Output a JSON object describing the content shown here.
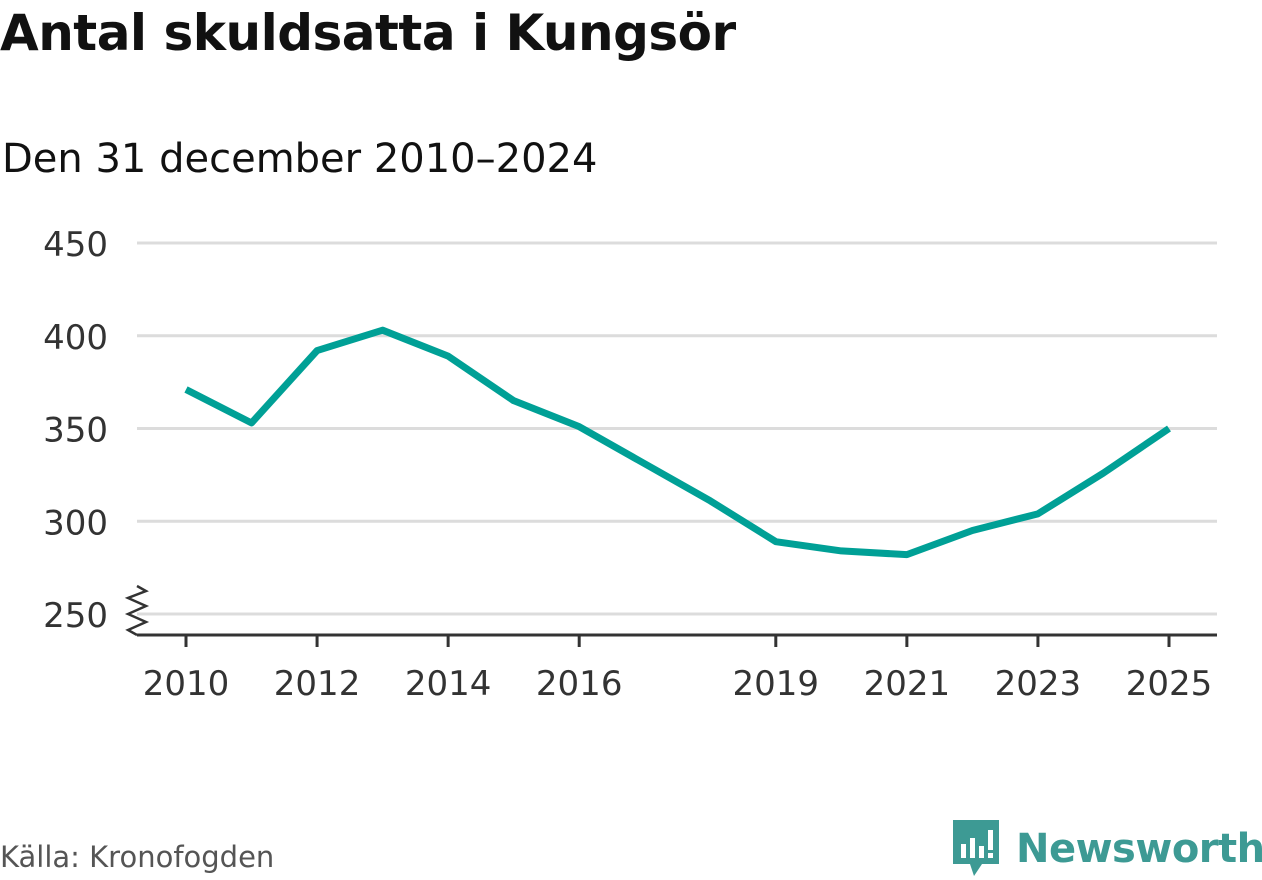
{
  "title": "Antal skuldsatta i Kungsör",
  "subtitle": "Den 31 december 2010–2024",
  "source": "Källa: Kronofogden",
  "brand": {
    "name": "Newsworthy",
    "logo_icon": "bar-chart-bubble-icon",
    "color": "#3d9a94"
  },
  "chart_data": {
    "type": "line",
    "title": "Antal skuldsatta i Kungsör",
    "subtitle": "Den 31 december 2010–2024",
    "xlabel": "",
    "ylabel": "",
    "x_tick_labels": [
      "2010",
      "2012",
      "2014",
      "2016",
      "2019",
      "2021",
      "2023",
      "2025"
    ],
    "y_tick_labels": [
      "250",
      "300",
      "350",
      "400",
      "450"
    ],
    "ylim": [
      250,
      450
    ],
    "y_axis_break": true,
    "grid": true,
    "line_color": "#00a096",
    "series": [
      {
        "x": [
          2010,
          2011,
          2012,
          2013,
          2014,
          2015,
          2016,
          2017,
          2018,
          2019,
          2020,
          2021,
          2022,
          2023,
          2024,
          2025
        ],
        "values": [
          371,
          353,
          392,
          403,
          389,
          365,
          351,
          331,
          311,
          289,
          284,
          282,
          295,
          304,
          326,
          350
        ]
      }
    ]
  }
}
